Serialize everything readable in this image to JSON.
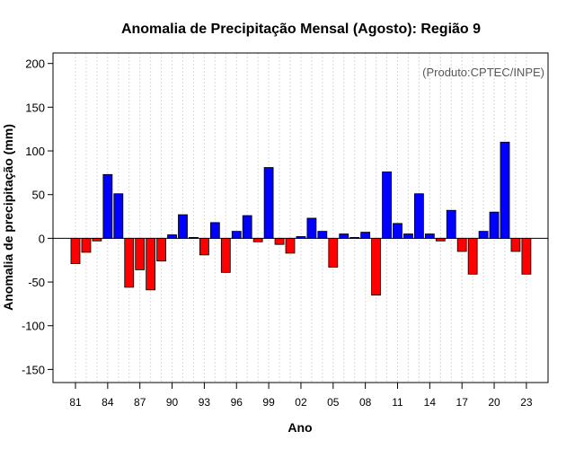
{
  "chart_data": {
    "type": "bar",
    "title": "Anomalia de Precipitação Mensal (Agosto): Região 9",
    "xlabel": "Ano",
    "ylabel": "Anomalia de precipitação (mm)",
    "annotation": "(Produto:CPTEC/INPE)",
    "ylim": [
      -165,
      212
    ],
    "y_ticks": [
      -150,
      -100,
      -50,
      0,
      50,
      100,
      150,
      200
    ],
    "x_tick_labels": [
      "81",
      "84",
      "87",
      "90",
      "93",
      "96",
      "99",
      "02",
      "05",
      "08",
      "11",
      "14",
      "17",
      "20",
      "23"
    ],
    "x_tick_years": [
      1981,
      1984,
      1987,
      1990,
      1993,
      1996,
      1999,
      2002,
      2005,
      2008,
      2011,
      2014,
      2017,
      2020,
      2023
    ],
    "years": [
      1981,
      1982,
      1983,
      1984,
      1985,
      1986,
      1987,
      1988,
      1989,
      1990,
      1991,
      1992,
      1993,
      1994,
      1995,
      1996,
      1997,
      1998,
      1999,
      2000,
      2001,
      2002,
      2003,
      2004,
      2005,
      2006,
      2007,
      2008,
      2009,
      2010,
      2011,
      2012,
      2013,
      2014,
      2015,
      2016,
      2017,
      2018,
      2019,
      2020,
      2021,
      2022,
      2023
    ],
    "values": [
      -29,
      -16,
      -3,
      73,
      51,
      -56,
      -36,
      -59,
      -26,
      4,
      27,
      1,
      -19,
      18,
      -39,
      8,
      26,
      -4,
      81,
      -7,
      -17,
      2,
      23,
      8,
      -33,
      5,
      1,
      7,
      -65,
      76,
      17,
      5,
      51,
      5,
      -3,
      32,
      -15,
      -41,
      8,
      30,
      110,
      -15,
      -41
    ],
    "colors": {
      "positive": "#0000ff",
      "negative": "#ff0000",
      "bar_stroke": "#000000",
      "grid": "#d9d9d9",
      "zero_line": "#000000"
    }
  }
}
